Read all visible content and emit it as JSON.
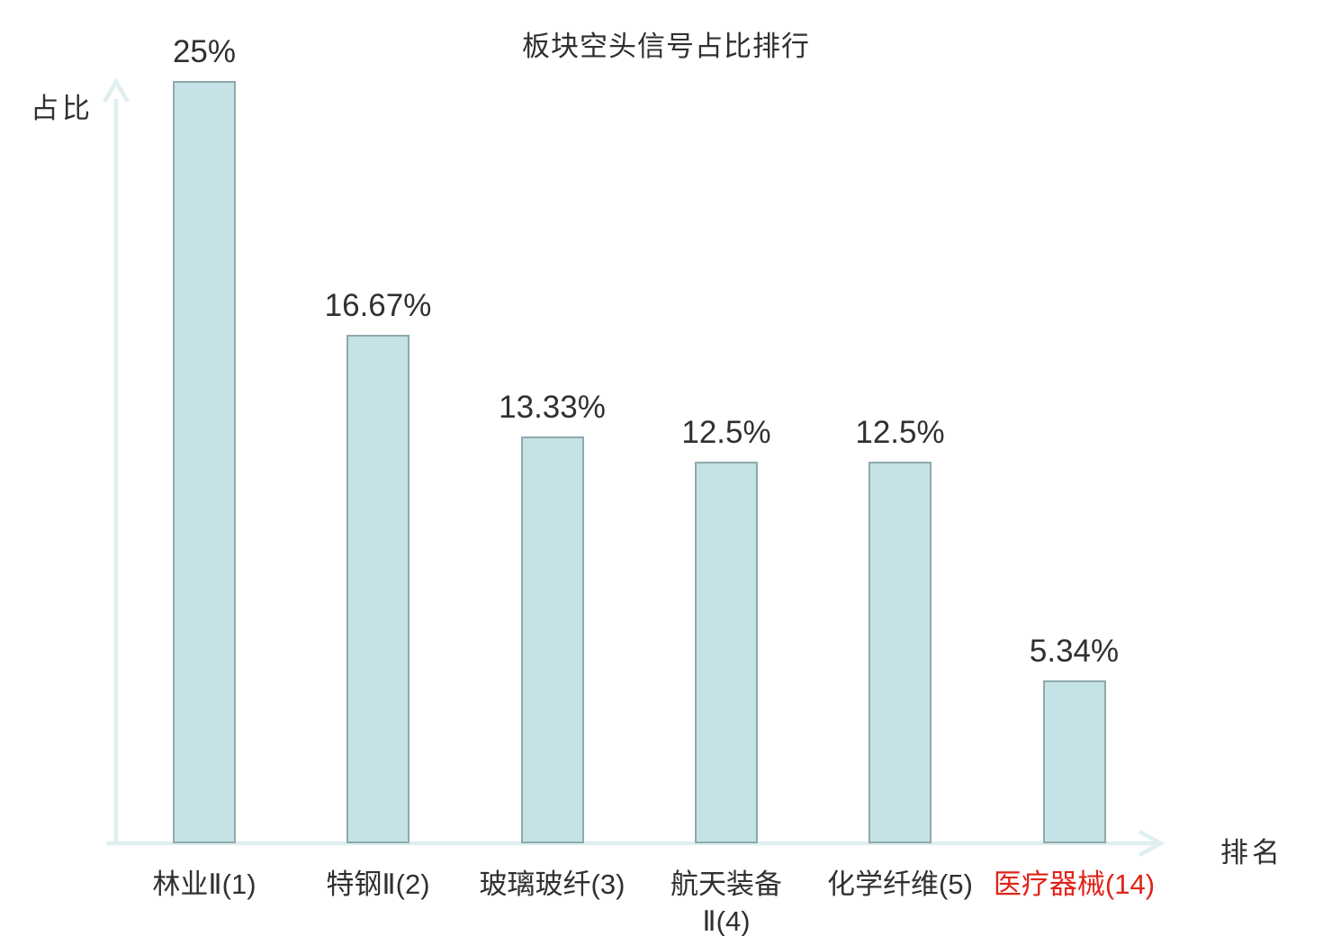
{
  "title": "板块空头信号占比排行",
  "axes": {
    "y_label": "占比",
    "x_label": "排名"
  },
  "colors": {
    "bar_fill": "#c5e2e6",
    "bar_border": "#8ea9ac",
    "axis": "#dfeff0",
    "text": "#303030",
    "highlight": "#e02318"
  },
  "chart_data": {
    "type": "bar",
    "title": "板块空头信号占比排行",
    "xlabel": "排名",
    "ylabel": "占比",
    "ylim": [
      0,
      25
    ],
    "grid": false,
    "legend": false,
    "categories": [
      "林业Ⅱ(1)",
      "特钢Ⅱ(2)",
      "玻璃玻纤(3)",
      "航天装备Ⅱ(4)",
      "化学纤维(5)",
      "医疗器械(14)"
    ],
    "values": [
      25,
      16.67,
      13.33,
      12.5,
      12.5,
      5.34
    ],
    "points": [
      {
        "category": "林业Ⅱ(1)",
        "category_display": "林业Ⅱ(1)",
        "value": 25,
        "value_label": "25%",
        "highlight": false
      },
      {
        "category": "特钢Ⅱ(2)",
        "category_display": "特钢Ⅱ(2)",
        "value": 16.67,
        "value_label": "16.67%",
        "highlight": false
      },
      {
        "category": "玻璃玻纤(3)",
        "category_display": "玻璃玻纤(3)",
        "value": 13.33,
        "value_label": "13.33%",
        "highlight": false
      },
      {
        "category": "航天装备Ⅱ(4)",
        "category_display": "航天装备\nⅡ(4)",
        "value": 12.5,
        "value_label": "12.5%",
        "highlight": false
      },
      {
        "category": "化学纤维(5)",
        "category_display": "化学纤维(5)",
        "value": 12.5,
        "value_label": "12.5%",
        "highlight": false
      },
      {
        "category": "医疗器械(14)",
        "category_display": "医疗器械(14)",
        "value": 5.34,
        "value_label": "5.34%",
        "highlight": true
      }
    ]
  }
}
